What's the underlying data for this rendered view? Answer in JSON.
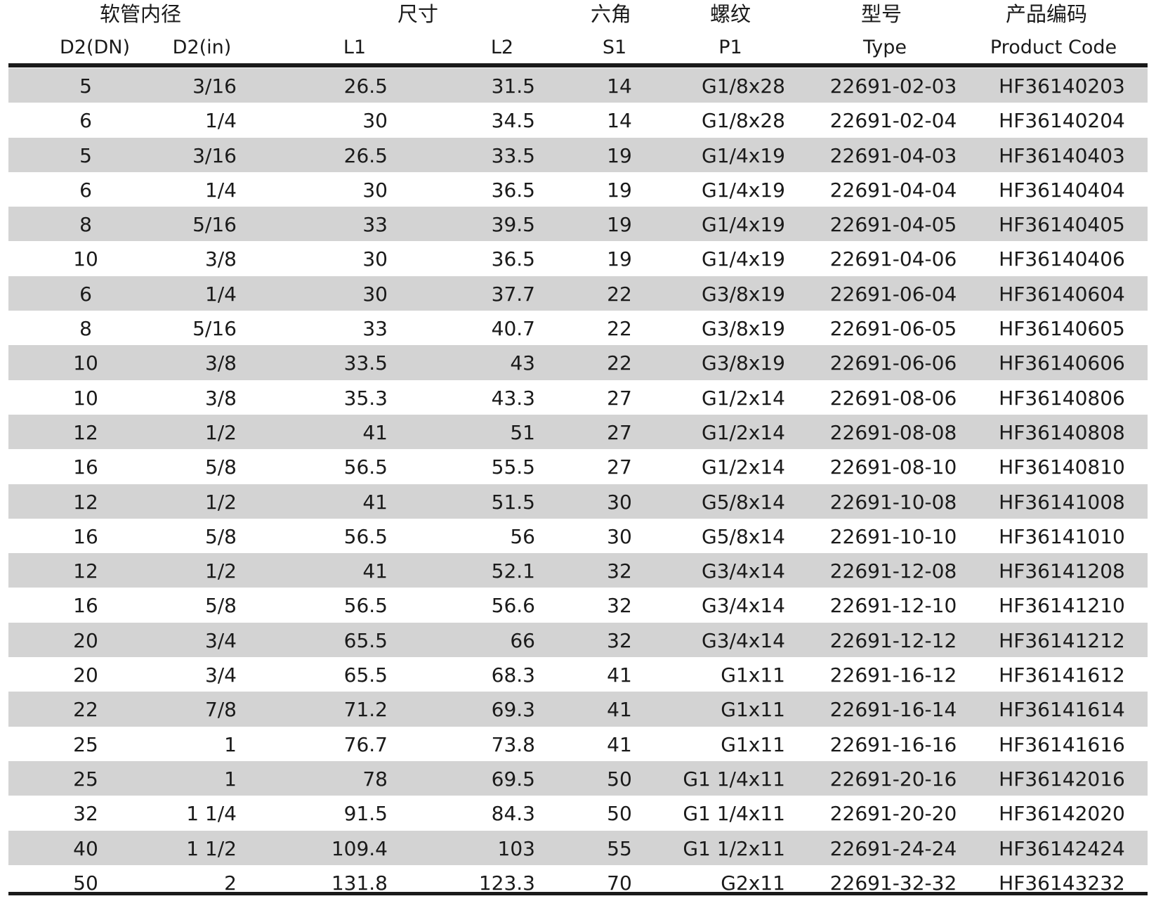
{
  "group_headers": {
    "hose_id": "软管内径",
    "dimensions": "尺寸",
    "hex": "六角",
    "thread": "螺纹",
    "type": "型号",
    "product_code": "产品编码"
  },
  "column_headers": {
    "d2_dn": "D2(DN)",
    "d2_in": "D2(in)",
    "l1": "L1",
    "l2": "L2",
    "s1": "S1",
    "p1": "P1",
    "type": "Type",
    "product_code": "Product Code"
  },
  "rows": [
    {
      "dn": "5",
      "inch": "3/16",
      "l1": "26.5",
      "l2": "31.5",
      "s1": "14",
      "p1": "G1/8x28",
      "type": "22691-02-03",
      "code": "HF36140203"
    },
    {
      "dn": "6",
      "inch": "1/4",
      "l1": "30",
      "l2": "34.5",
      "s1": "14",
      "p1": "G1/8x28",
      "type": "22691-02-04",
      "code": "HF36140204"
    },
    {
      "dn": "5",
      "inch": "3/16",
      "l1": "26.5",
      "l2": "33.5",
      "s1": "19",
      "p1": "G1/4x19",
      "type": "22691-04-03",
      "code": "HF36140403"
    },
    {
      "dn": "6",
      "inch": "1/4",
      "l1": "30",
      "l2": "36.5",
      "s1": "19",
      "p1": "G1/4x19",
      "type": "22691-04-04",
      "code": "HF36140404"
    },
    {
      "dn": "8",
      "inch": "5/16",
      "l1": "33",
      "l2": "39.5",
      "s1": "19",
      "p1": "G1/4x19",
      "type": "22691-04-05",
      "code": "HF36140405"
    },
    {
      "dn": "10",
      "inch": "3/8",
      "l1": "30",
      "l2": "36.5",
      "s1": "19",
      "p1": "G1/4x19",
      "type": "22691-04-06",
      "code": "HF36140406"
    },
    {
      "dn": "6",
      "inch": "1/4",
      "l1": "30",
      "l2": "37.7",
      "s1": "22",
      "p1": "G3/8x19",
      "type": "22691-06-04",
      "code": "HF36140604"
    },
    {
      "dn": "8",
      "inch": "5/16",
      "l1": "33",
      "l2": "40.7",
      "s1": "22",
      "p1": "G3/8x19",
      "type": "22691-06-05",
      "code": "HF36140605"
    },
    {
      "dn": "10",
      "inch": "3/8",
      "l1": "33.5",
      "l2": "43",
      "s1": "22",
      "p1": "G3/8x19",
      "type": "22691-06-06",
      "code": "HF36140606"
    },
    {
      "dn": "10",
      "inch": "3/8",
      "l1": "35.3",
      "l2": "43.3",
      "s1": "27",
      "p1": "G1/2x14",
      "type": "22691-08-06",
      "code": "HF36140806"
    },
    {
      "dn": "12",
      "inch": "1/2",
      "l1": "41",
      "l2": "51",
      "s1": "27",
      "p1": "G1/2x14",
      "type": "22691-08-08",
      "code": "HF36140808"
    },
    {
      "dn": "16",
      "inch": "5/8",
      "l1": "56.5",
      "l2": "55.5",
      "s1": "27",
      "p1": "G1/2x14",
      "type": "22691-08-10",
      "code": "HF36140810"
    },
    {
      "dn": "12",
      "inch": "1/2",
      "l1": "41",
      "l2": "51.5",
      "s1": "30",
      "p1": "G5/8x14",
      "type": "22691-10-08",
      "code": "HF36141008"
    },
    {
      "dn": "16",
      "inch": "5/8",
      "l1": "56.5",
      "l2": "56",
      "s1": "30",
      "p1": "G5/8x14",
      "type": "22691-10-10",
      "code": "HF36141010"
    },
    {
      "dn": "12",
      "inch": "1/2",
      "l1": "41",
      "l2": "52.1",
      "s1": "32",
      "p1": "G3/4x14",
      "type": "22691-12-08",
      "code": "HF36141208"
    },
    {
      "dn": "16",
      "inch": "5/8",
      "l1": "56.5",
      "l2": "56.6",
      "s1": "32",
      "p1": "G3/4x14",
      "type": "22691-12-10",
      "code": "HF36141210"
    },
    {
      "dn": "20",
      "inch": "3/4",
      "l1": "65.5",
      "l2": "66",
      "s1": "32",
      "p1": "G3/4x14",
      "type": "22691-12-12",
      "code": "HF36141212"
    },
    {
      "dn": "20",
      "inch": "3/4",
      "l1": "65.5",
      "l2": "68.3",
      "s1": "41",
      "p1": "G1x11",
      "type": "22691-16-12",
      "code": "HF36141612"
    },
    {
      "dn": "22",
      "inch": "7/8",
      "l1": "71.2",
      "l2": "69.3",
      "s1": "41",
      "p1": "G1x11",
      "type": "22691-16-14",
      "code": "HF36141614"
    },
    {
      "dn": "25",
      "inch": "1",
      "l1": "76.7",
      "l2": "73.8",
      "s1": "41",
      "p1": "G1x11",
      "type": "22691-16-16",
      "code": "HF36141616"
    },
    {
      "dn": "25",
      "inch": "1",
      "l1": "78",
      "l2": "69.5",
      "s1": "50",
      "p1": "G1 1/4x11",
      "type": "22691-20-16",
      "code": "HF36142016"
    },
    {
      "dn": "32",
      "inch": "1 1/4",
      "l1": "91.5",
      "l2": "84.3",
      "s1": "50",
      "p1": "G1 1/4x11",
      "type": "22691-20-20",
      "code": "HF36142020"
    },
    {
      "dn": "40",
      "inch": "1 1/2",
      "l1": "109.4",
      "l2": "103",
      "s1": "55",
      "p1": "G1 1/2x11",
      "type": "22691-24-24",
      "code": "HF36142424"
    },
    {
      "dn": "50",
      "inch": "2",
      "l1": "131.8",
      "l2": "123.3",
      "s1": "70",
      "p1": "G2x11",
      "type": "22691-32-32",
      "code": "HF36143232"
    }
  ],
  "colors": {
    "stripe": "#d3d3d3",
    "rule": "#1a1a1a",
    "text": "#1a1a1a"
  }
}
